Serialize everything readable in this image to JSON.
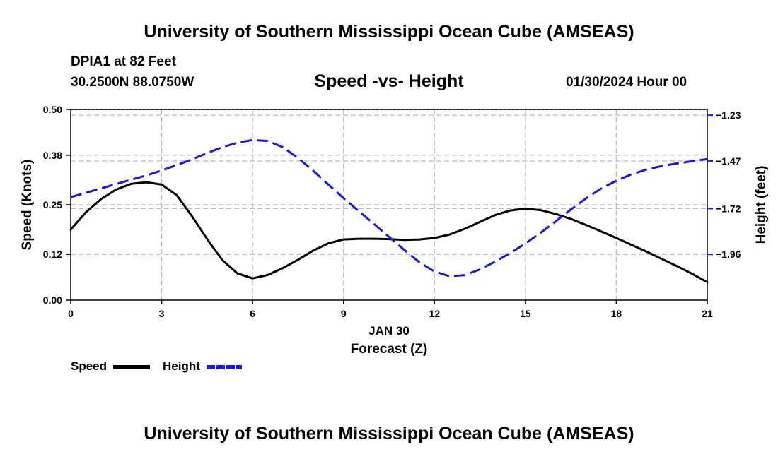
{
  "header": {
    "title": "University of Southern Mississippi Ocean Cube (AMSEAS)",
    "station": "DPIA1 at 82 Feet",
    "coords": "30.2500N  88.0750W",
    "subtitle": "Speed -vs- Height",
    "datetime": "01/30/2024 Hour 00"
  },
  "footer": {
    "title": "University of Southern Mississippi Ocean Cube (AMSEAS)"
  },
  "legend": {
    "speed_label": "Speed",
    "height_label": "Height"
  },
  "chart_data": {
    "type": "line",
    "title": "Speed -vs- Height",
    "xlabel": "Forecast (Z)",
    "xlabel_date": "JAN 30",
    "ylabel_left": "Speed (Knots)",
    "ylabel_right": "Height (feet)",
    "xlim": [
      0,
      21
    ],
    "ylim_left": [
      0,
      0.5
    ],
    "ylim_right": [
      -2.2,
      -1.2
    ],
    "x_ticks": [
      "0",
      "3",
      "6",
      "9",
      "12",
      "15",
      "18",
      "21"
    ],
    "y_ticks_left": [
      "0.00",
      "0.12",
      "0.25",
      "0.38",
      "0.50"
    ],
    "y_ticks_right": [
      "-1.23",
      "-1.47",
      "-1.72",
      "-1.96"
    ],
    "y_tick_values_right": [
      -1.23,
      -1.47,
      -1.72,
      -1.96
    ],
    "grid": true,
    "series": [
      {
        "name": "Speed",
        "axis": "left",
        "color": "#000000",
        "style": "solid",
        "x": [
          0,
          0.5,
          1,
          1.5,
          2,
          2.5,
          3,
          3.5,
          4,
          4.5,
          5,
          5.5,
          6,
          6.5,
          7,
          7.5,
          8,
          8.5,
          9,
          9.5,
          10,
          10.5,
          11,
          11.5,
          12,
          12.5,
          13,
          13.5,
          14,
          14.5,
          15,
          15.5,
          16,
          16.5,
          17,
          17.5,
          18,
          18.5,
          19,
          19.5,
          20,
          20.5,
          21
        ],
        "values": [
          0.185,
          0.23,
          0.265,
          0.29,
          0.305,
          0.309,
          0.303,
          0.275,
          0.22,
          0.16,
          0.105,
          0.07,
          0.057,
          0.066,
          0.084,
          0.106,
          0.13,
          0.149,
          0.159,
          0.161,
          0.161,
          0.16,
          0.158,
          0.159,
          0.163,
          0.172,
          0.187,
          0.205,
          0.223,
          0.235,
          0.24,
          0.236,
          0.226,
          0.213,
          0.197,
          0.18,
          0.163,
          0.145,
          0.127,
          0.108,
          0.089,
          0.069,
          0.047
        ]
      },
      {
        "name": "Height",
        "axis": "right",
        "color": "#1a1ad6",
        "style": "dashed",
        "x": [
          0,
          0.5,
          1,
          1.5,
          2,
          2.5,
          3,
          3.5,
          4,
          4.5,
          5,
          5.5,
          6,
          6.5,
          7,
          7.5,
          8,
          8.5,
          9,
          9.5,
          10,
          10.5,
          11,
          11.5,
          12,
          12.5,
          13,
          13.5,
          14,
          14.5,
          15,
          15.5,
          16,
          16.5,
          17,
          17.5,
          18,
          18.5,
          19,
          19.5,
          20,
          20.5,
          21
        ],
        "values": [
          -1.66,
          -1.637,
          -1.614,
          -1.591,
          -1.568,
          -1.546,
          -1.52,
          -1.492,
          -1.462,
          -1.429,
          -1.398,
          -1.374,
          -1.36,
          -1.365,
          -1.398,
          -1.455,
          -1.522,
          -1.594,
          -1.665,
          -1.733,
          -1.8,
          -1.868,
          -1.936,
          -2.001,
          -2.05,
          -2.075,
          -2.069,
          -2.039,
          -1.998,
          -1.953,
          -1.903,
          -1.847,
          -1.787,
          -1.725,
          -1.666,
          -1.615,
          -1.574,
          -1.54,
          -1.515,
          -1.497,
          -1.483,
          -1.472,
          -1.46
        ]
      }
    ]
  }
}
